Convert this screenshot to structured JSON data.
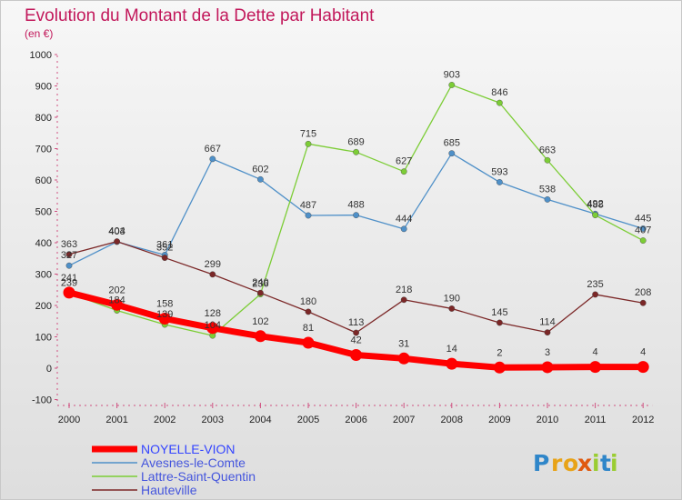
{
  "chart_data": {
    "type": "line",
    "title": "Evolution du Montant de la Dette par Habitant",
    "subtitle": "(en €)",
    "xlabel": "",
    "ylabel": "",
    "x": [
      "2000",
      "2001",
      "2002",
      "2003",
      "2004",
      "2005",
      "2006",
      "2007",
      "2008",
      "2009",
      "2010",
      "2011",
      "2012"
    ],
    "ylim": [
      -100,
      1000
    ],
    "yticks": [
      -100,
      0,
      100,
      200,
      300,
      400,
      500,
      600,
      700,
      800,
      900,
      1000
    ],
    "grid": false,
    "legend_position": "bottom-left",
    "series": [
      {
        "name": "NOYELLE-VION",
        "color": "#ff0000",
        "values": [
          241,
          202,
          158,
          128,
          102,
          81,
          42,
          31,
          14,
          2,
          3,
          4,
          4
        ]
      },
      {
        "name": "Avesnes-le-Comte",
        "color": "#4f90c8",
        "values": [
          327,
          403,
          361,
          667,
          602,
          487,
          488,
          444,
          685,
          593,
          538,
          492,
          445
        ]
      },
      {
        "name": "Lattre-Saint-Quentin",
        "color": "#7ccd36",
        "values": [
          239,
          184,
          139,
          104,
          236,
          715,
          689,
          627,
          903,
          846,
          663,
          488,
          407
        ]
      },
      {
        "name": "Hauteville",
        "color": "#7b2727",
        "values": [
          363,
          404,
          352,
          299,
          240,
          180,
          113,
          218,
          190,
          145,
          114,
          235,
          208
        ]
      }
    ]
  },
  "logo": {
    "letters": [
      "P",
      "r",
      "o",
      "x",
      "i",
      "t",
      "i"
    ],
    "colors": [
      "#2f86c9",
      "#e8a317",
      "#e8a317",
      "#e05a10",
      "#9acd32",
      "#2f86c9",
      "#9acd32"
    ]
  }
}
